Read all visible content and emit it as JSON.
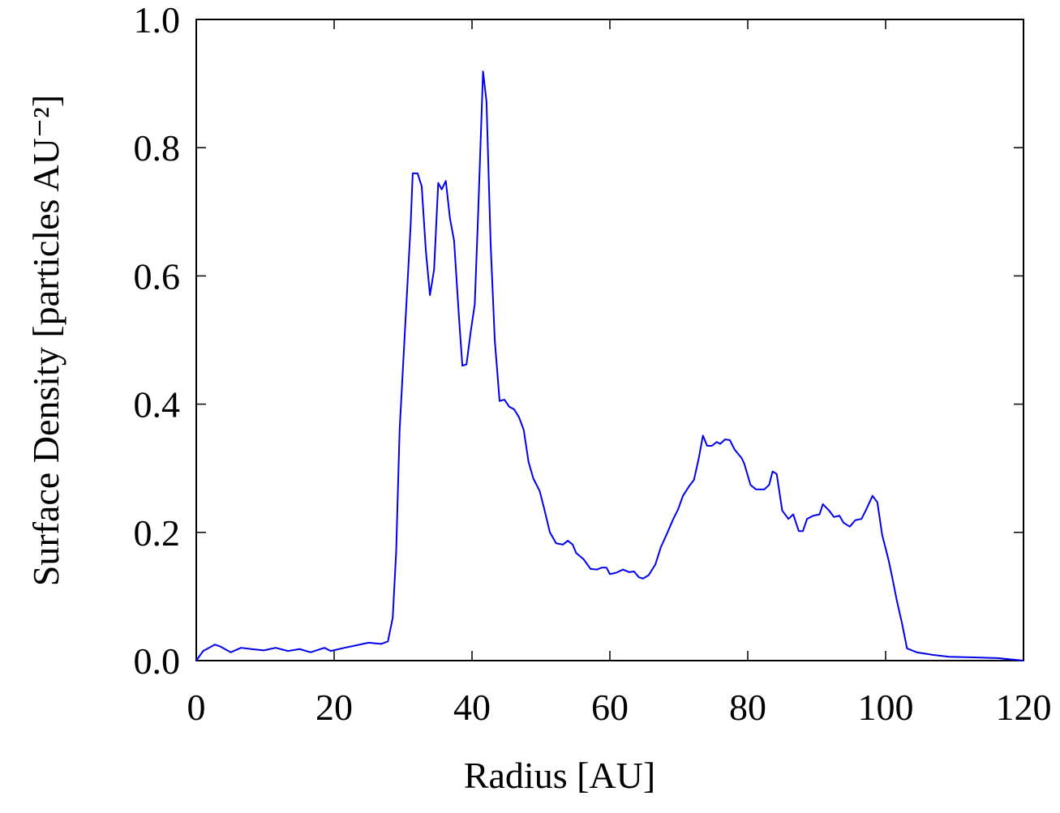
{
  "chart_data": {
    "type": "line",
    "xlabel": "Radius [AU]",
    "ylabel": "Surface Density [particles AU⁻²]",
    "xlim": [
      0,
      120
    ],
    "ylim": [
      0,
      1.0
    ],
    "xticks": [
      0,
      20,
      40,
      60,
      80,
      100,
      120
    ],
    "yticks": [
      {
        "value": 0,
        "label": "0.0"
      },
      {
        "value": 0.2,
        "label": "0.2"
      },
      {
        "value": 0.4,
        "label": "0.4"
      },
      {
        "value": 0.6,
        "label": "0.6"
      },
      {
        "value": 0.8,
        "label": "0.8"
      },
      {
        "value": 1.0,
        "label": "1.0"
      }
    ],
    "color": "#0000ee",
    "x": [
      0,
      1,
      2.7,
      3.5,
      5,
      6.5,
      8,
      9.8,
      11.5,
      13.3,
      15,
      16.6,
      18.6,
      19.5,
      21.5,
      23.3,
      25,
      26.8,
      27.8,
      28.5,
      29,
      29.5,
      30.4,
      31.1,
      31.4,
      32.1,
      32.7,
      33.3,
      33.9,
      34.5,
      35.1,
      35.6,
      36.2,
      36.8,
      37.4,
      38.1,
      38.6,
      39.2,
      39.8,
      40.4,
      40.9,
      41.6,
      42.1,
      42.7,
      43.3,
      44,
      44.7,
      45.4,
      46.1,
      46.8,
      47.5,
      48.2,
      48.9,
      49.8,
      50.4,
      51.3,
      52.2,
      53.2,
      53.9,
      54.6,
      55.1,
      56.2,
      57.2,
      58.1,
      58.8,
      59.5,
      60,
      60.9,
      61.9,
      62.8,
      63.5,
      64.2,
      64.8,
      65.6,
      66.6,
      67.4,
      68.2,
      69.2,
      69.9,
      70.6,
      71.5,
      72.2,
      72.9,
      73.5,
      74.1,
      74.8,
      75.5,
      76,
      76.7,
      77.4,
      78.1,
      79.1,
      79.5,
      80.4,
      81.2,
      82.4,
      83.1,
      83.6,
      84.2,
      85,
      85.9,
      86.6,
      87.4,
      88,
      88.6,
      89.5,
      90.4,
      90.9,
      91.8,
      92.5,
      93.3,
      93.9,
      94.8,
      95.6,
      96.5,
      97.2,
      98.1,
      98.8,
      99.5,
      100.4,
      100.9,
      101.6,
      102.4,
      103.1,
      104.5,
      106.8,
      109.2,
      112.7,
      116.2,
      120
    ],
    "values": [
      0,
      0.015,
      0.025,
      0.022,
      0.013,
      0.02,
      0.018,
      0.016,
      0.02,
      0.015,
      0.018,
      0.013,
      0.02,
      0.015,
      0.02,
      0.024,
      0.028,
      0.026,
      0.03,
      0.067,
      0.17,
      0.36,
      0.54,
      0.68,
      0.76,
      0.76,
      0.74,
      0.64,
      0.57,
      0.61,
      0.745,
      0.735,
      0.748,
      0.69,
      0.655,
      0.537,
      0.46,
      0.462,
      0.512,
      0.556,
      0.7,
      0.919,
      0.872,
      0.651,
      0.5,
      0.405,
      0.407,
      0.396,
      0.392,
      0.38,
      0.36,
      0.31,
      0.284,
      0.265,
      0.24,
      0.2,
      0.183,
      0.181,
      0.187,
      0.181,
      0.168,
      0.158,
      0.143,
      0.142,
      0.145,
      0.145,
      0.135,
      0.137,
      0.142,
      0.138,
      0.139,
      0.13,
      0.128,
      0.133,
      0.15,
      0.177,
      0.196,
      0.221,
      0.236,
      0.257,
      0.272,
      0.282,
      0.316,
      0.351,
      0.335,
      0.335,
      0.341,
      0.338,
      0.345,
      0.344,
      0.329,
      0.316,
      0.307,
      0.274,
      0.267,
      0.267,
      0.274,
      0.295,
      0.291,
      0.234,
      0.221,
      0.228,
      0.202,
      0.202,
      0.221,
      0.226,
      0.228,
      0.244,
      0.234,
      0.224,
      0.226,
      0.215,
      0.209,
      0.219,
      0.221,
      0.236,
      0.257,
      0.247,
      0.196,
      0.158,
      0.133,
      0.095,
      0.057,
      0.019,
      0.013,
      0.009,
      0.006,
      0.005,
      0.004,
      0
    ]
  }
}
